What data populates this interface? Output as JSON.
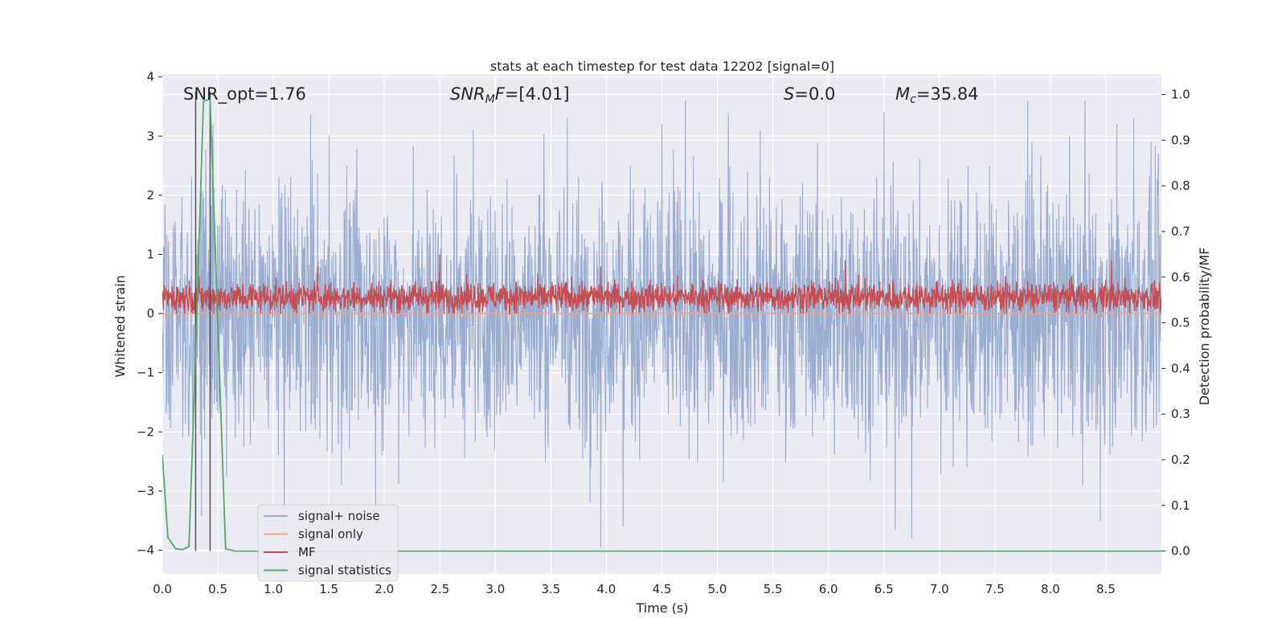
{
  "title": "stats at each timestep for test data 12202 [signal=0]",
  "annotations": {
    "snr_opt": "SNR_opt=1.76",
    "snr_mf_main": "SNR",
    "snr_mf_sub": "M",
    "snr_mf_f": "F",
    "snr_mf_value": "=[4.01]",
    "s_main": "S",
    "s_value": "=0.0",
    "mc_main": "M",
    "mc_sub": "c",
    "mc_value": "=35.84"
  },
  "chart_data": {
    "type": "line",
    "title": "stats at each timestep for test data 12202 [signal=0]",
    "xlabel": "Time (s)",
    "ylabel": "Whitened strain",
    "y2label": "Detection probability/MF",
    "xlim": [
      0.0,
      9.0
    ],
    "ylim": [
      -4.4,
      4.05
    ],
    "y2lim": [
      -0.05,
      1.045
    ],
    "grid": true,
    "x_ticks": [
      "0.0",
      "0.5",
      "1.0",
      "1.5",
      "2.0",
      "2.5",
      "3.0",
      "3.5",
      "4.0",
      "4.5",
      "5.0",
      "5.5",
      "6.0",
      "6.5",
      "7.0",
      "7.5",
      "8.0",
      "8.5"
    ],
    "y_ticks": [
      "−4",
      "−3",
      "−2",
      "−1",
      "0",
      "1",
      "2",
      "3",
      "4"
    ],
    "y2_ticks": [
      "0.0",
      "0.1",
      "0.2",
      "0.3",
      "0.4",
      "0.5",
      "0.6",
      "0.7",
      "0.8",
      "0.9",
      "1.0"
    ],
    "legend_position": "lower-left",
    "series": [
      {
        "name": "signal+ noise",
        "axis": "left",
        "color": "#9aacd0",
        "description": "whitened strain noise, approximately within ±2.2 with spikes to ±3.8",
        "peaks": [
          {
            "x": 0.45,
            "y": 3.0
          },
          {
            "x": 1.35,
            "y": 2.6
          },
          {
            "x": 2.8,
            "y": 3.1
          },
          {
            "x": 3.65,
            "y": 3.3
          },
          {
            "x": 4.5,
            "y": 3.2
          },
          {
            "x": 5.1,
            "y": 3.4
          },
          {
            "x": 6.5,
            "y": 3.4
          },
          {
            "x": 8.6,
            "y": 3.2
          },
          {
            "x": 8.75,
            "y": 3.3
          },
          {
            "x": 3.95,
            "y": -3.95
          },
          {
            "x": 4.15,
            "y": -3.6
          },
          {
            "x": 6.6,
            "y": -3.65
          },
          {
            "x": 6.75,
            "y": -3.8
          },
          {
            "x": 8.45,
            "y": -3.5
          }
        ]
      },
      {
        "name": "signal only",
        "axis": "left",
        "color": "#e8a58c",
        "description": "flat at zero",
        "x": [
          0.0,
          9.0
        ],
        "y": [
          0.0,
          0.0
        ]
      },
      {
        "name": "MF",
        "axis": "left",
        "color": "#c44e52",
        "description": "matched filter output, approximately between 0.0 and 0.6, occasional peaks to 1.0",
        "peaks": [
          {
            "x": 1.4,
            "y": 0.8
          },
          {
            "x": 2.5,
            "y": 1.0
          },
          {
            "x": 3.95,
            "y": 0.8
          },
          {
            "x": 6.15,
            "y": 0.9
          },
          {
            "x": 8.55,
            "y": 0.9
          }
        ]
      },
      {
        "name": "signal statistics",
        "axis": "right",
        "color": "#55a868",
        "x": [
          0.0,
          0.05,
          0.12,
          0.18,
          0.24,
          0.3,
          0.37,
          0.43,
          0.5,
          0.57,
          0.65,
          1.0,
          2.0,
          3.0,
          4.0,
          5.0,
          6.0,
          7.0,
          8.0,
          9.0
        ],
        "y": [
          0.21,
          0.03,
          0.005,
          0.003,
          0.01,
          0.43,
          0.985,
          0.99,
          0.49,
          0.005,
          0.0,
          0.0,
          0.0,
          0.0,
          0.0,
          0.0,
          0.0,
          0.0,
          0.0,
          0.0
        ]
      }
    ],
    "vertical_lines": {
      "color": "#555555",
      "x": [
        0.3,
        0.43
      ]
    }
  }
}
